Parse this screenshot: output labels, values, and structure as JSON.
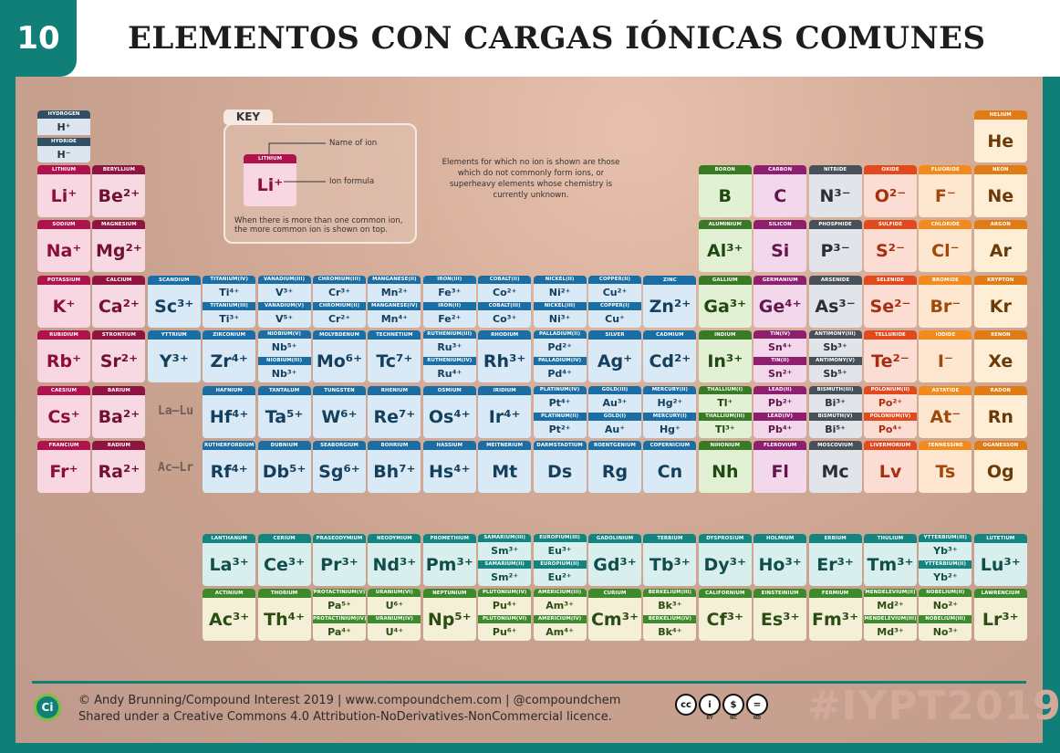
{
  "header": {
    "number": "10",
    "title": "ELEMENTOS CON CARGAS IÓNICAS COMUNES"
  },
  "key": {
    "tag": "KEY",
    "name_label": "Name of ion",
    "formula_label": "Ion formula",
    "sample_name": "LITHIUM",
    "sample_ion": "Li⁺",
    "note": "When there is more than one common ion, the more common ion is shown on top."
  },
  "note_main": "Elements for which no ion is shown are those which do not commonly form ions, or superheavy elements whose chemistry is currently unknown.",
  "gap_labels": {
    "la": "La–Lu",
    "ac": "Ac–Lr"
  },
  "colors": {
    "alkali": {
      "bar": "#b0124e",
      "bg": "#f8d7e3",
      "fg": "#8c0d3c"
    },
    "alkaline": {
      "bar": "#8f1540",
      "bg": "#f6d9e2",
      "fg": "#731032"
    },
    "transition": {
      "bar": "#1a6ea4",
      "bg": "#d9e9f6",
      "fg": "#14405e"
    },
    "post": {
      "bar": "#3a7a26",
      "bg": "#e2f0d3",
      "fg": "#204912"
    },
    "metalloid": {
      "bar": "#8d1f6e",
      "bg": "#f2d8ea",
      "fg": "#63154d"
    },
    "nonmetal": {
      "bar": "#48505a",
      "bg": "#e1e4e8",
      "fg": "#2b2f35"
    },
    "halogen_o": {
      "bar": "#e24a1e",
      "bg": "#fbddd3",
      "fg": "#a72e0f"
    },
    "halogen": {
      "bar": "#f28a1d",
      "bg": "#fde7d1",
      "fg": "#a0490a"
    },
    "noble": {
      "bar": "#e07b16",
      "bg": "#fdeed5",
      "fg": "#6b3a08"
    },
    "lanth": {
      "bar": "#13847f",
      "bg": "#d9efee",
      "fg": "#0f4e4b"
    },
    "actin": {
      "bar": "#3d8a2a",
      "bg": "#f3f0d7",
      "fg": "#2c4d12"
    },
    "hydro": {
      "bar": "#2f4f66",
      "bg": "#dde6ee",
      "fg": "#203646"
    }
  },
  "elements": [
    {
      "c": "hydro",
      "g": 1,
      "r": 1,
      "dual": [
        [
          "HYDROGEN",
          "H⁺"
        ],
        [
          "HYDRIDE",
          "H⁻"
        ]
      ]
    },
    {
      "c": "noble",
      "g": 18,
      "r": 1,
      "name": "HELIUM",
      "ion": "He"
    },
    {
      "c": "alkali",
      "g": 1,
      "r": 2,
      "name": "LITHIUM",
      "ion": "Li⁺"
    },
    {
      "c": "alkaline",
      "g": 2,
      "r": 2,
      "name": "BERYLLIUM",
      "ion": "Be²⁺"
    },
    {
      "c": "post",
      "g": 13,
      "r": 2,
      "name": "BORON",
      "ion": "B"
    },
    {
      "c": "metalloid",
      "g": 14,
      "r": 2,
      "name": "CARBON",
      "ion": "C"
    },
    {
      "c": "nonmetal",
      "g": 15,
      "r": 2,
      "name": "NITRIDE",
      "ion": "N³⁻"
    },
    {
      "c": "halogen_o",
      "g": 16,
      "r": 2,
      "name": "OXIDE",
      "ion": "O²⁻"
    },
    {
      "c": "halogen",
      "g": 17,
      "r": 2,
      "name": "FLUORIDE",
      "ion": "F⁻"
    },
    {
      "c": "noble",
      "g": 18,
      "r": 2,
      "name": "NEON",
      "ion": "Ne"
    },
    {
      "c": "alkali",
      "g": 1,
      "r": 3,
      "name": "SODIUM",
      "ion": "Na⁺"
    },
    {
      "c": "alkaline",
      "g": 2,
      "r": 3,
      "name": "MAGNESIUM",
      "ion": "Mg²⁺"
    },
    {
      "c": "post",
      "g": 13,
      "r": 3,
      "name": "ALUMINIUM",
      "ion": "Al³⁺"
    },
    {
      "c": "metalloid",
      "g": 14,
      "r": 3,
      "name": "SILICON",
      "ion": "Si"
    },
    {
      "c": "nonmetal",
      "g": 15,
      "r": 3,
      "name": "PHOSPHIDE",
      "ion": "P³⁻"
    },
    {
      "c": "halogen_o",
      "g": 16,
      "r": 3,
      "name": "SULFIDE",
      "ion": "S²⁻"
    },
    {
      "c": "halogen",
      "g": 17,
      "r": 3,
      "name": "CHLORIDE",
      "ion": "Cl⁻"
    },
    {
      "c": "noble",
      "g": 18,
      "r": 3,
      "name": "ARGON",
      "ion": "Ar"
    },
    {
      "c": "alkali",
      "g": 1,
      "r": 4,
      "name": "POTASSIUM",
      "ion": "K⁺"
    },
    {
      "c": "alkaline",
      "g": 2,
      "r": 4,
      "name": "CALCIUM",
      "ion": "Ca²⁺"
    },
    {
      "c": "transition",
      "g": 3,
      "r": 4,
      "name": "SCANDIUM",
      "ion": "Sc³⁺"
    },
    {
      "c": "transition",
      "g": 4,
      "r": 4,
      "dual": [
        [
          "TITANIUM(IV)",
          "Ti⁴⁺"
        ],
        [
          "TITANIUM(III)",
          "Ti³⁺"
        ]
      ]
    },
    {
      "c": "transition",
      "g": 5,
      "r": 4,
      "dual": [
        [
          "VANADIUM(III)",
          "V³⁺"
        ],
        [
          "VANADIUM(V)",
          "V⁵⁺"
        ]
      ]
    },
    {
      "c": "transition",
      "g": 6,
      "r": 4,
      "dual": [
        [
          "CHROMIUM(III)",
          "Cr³⁺"
        ],
        [
          "CHROMIUM(II)",
          "Cr²⁺"
        ]
      ]
    },
    {
      "c": "transition",
      "g": 7,
      "r": 4,
      "dual": [
        [
          "MANGANESE(II)",
          "Mn²⁺"
        ],
        [
          "MANGANESE(IV)",
          "Mn⁴⁺"
        ]
      ]
    },
    {
      "c": "transition",
      "g": 8,
      "r": 4,
      "dual": [
        [
          "IRON(III)",
          "Fe³⁺"
        ],
        [
          "IRON(II)",
          "Fe²⁺"
        ]
      ]
    },
    {
      "c": "transition",
      "g": 9,
      "r": 4,
      "dual": [
        [
          "COBALT(II)",
          "Co²⁺"
        ],
        [
          "COBALT(III)",
          "Co³⁺"
        ]
      ]
    },
    {
      "c": "transition",
      "g": 10,
      "r": 4,
      "dual": [
        [
          "NICKEL(II)",
          "Ni²⁺"
        ],
        [
          "NICKEL(III)",
          "Ni³⁺"
        ]
      ]
    },
    {
      "c": "transition",
      "g": 11,
      "r": 4,
      "dual": [
        [
          "COPPER(II)",
          "Cu²⁺"
        ],
        [
          "COPPER(I)",
          "Cu⁺"
        ]
      ]
    },
    {
      "c": "transition",
      "g": 12,
      "r": 4,
      "name": "ZINC",
      "ion": "Zn²⁺"
    },
    {
      "c": "post",
      "g": 13,
      "r": 4,
      "name": "GALLIUM",
      "ion": "Ga³⁺"
    },
    {
      "c": "metalloid",
      "g": 14,
      "r": 4,
      "name": "GERMANIUM",
      "ion": "Ge⁴⁺"
    },
    {
      "c": "nonmetal",
      "g": 15,
      "r": 4,
      "name": "ARSENIDE",
      "ion": "As³⁻"
    },
    {
      "c": "halogen_o",
      "g": 16,
      "r": 4,
      "name": "SELENIDE",
      "ion": "Se²⁻"
    },
    {
      "c": "halogen",
      "g": 17,
      "r": 4,
      "name": "BROMIDE",
      "ion": "Br⁻"
    },
    {
      "c": "noble",
      "g": 18,
      "r": 4,
      "name": "KRYPTON",
      "ion": "Kr"
    },
    {
      "c": "alkali",
      "g": 1,
      "r": 5,
      "name": "RUBIDIUM",
      "ion": "Rb⁺"
    },
    {
      "c": "alkaline",
      "g": 2,
      "r": 5,
      "name": "STRONTIUM",
      "ion": "Sr²⁺"
    },
    {
      "c": "transition",
      "g": 3,
      "r": 5,
      "name": "YTTRIUM",
      "ion": "Y³⁺"
    },
    {
      "c": "transition",
      "g": 4,
      "r": 5,
      "name": "ZIRCONIUM",
      "ion": "Zr⁴⁺"
    },
    {
      "c": "transition",
      "g": 5,
      "r": 5,
      "dual": [
        [
          "NIOBIUM(V)",
          "Nb⁵⁺"
        ],
        [
          "NIOBIUM(III)",
          "Nb³⁺"
        ]
      ]
    },
    {
      "c": "transition",
      "g": 6,
      "r": 5,
      "name": "MOLYBDENUM",
      "ion": "Mo⁶⁺"
    },
    {
      "c": "transition",
      "g": 7,
      "r": 5,
      "name": "TECHNETIUM",
      "ion": "Tc⁷⁺"
    },
    {
      "c": "transition",
      "g": 8,
      "r": 5,
      "dual": [
        [
          "RUTHENIUM(III)",
          "Ru³⁺"
        ],
        [
          "RUTHENIUM(IV)",
          "Ru⁴⁺"
        ]
      ]
    },
    {
      "c": "transition",
      "g": 9,
      "r": 5,
      "name": "RHODIUM",
      "ion": "Rh³⁺"
    },
    {
      "c": "transition",
      "g": 10,
      "r": 5,
      "dual": [
        [
          "PALLADIUM(II)",
          "Pd²⁺"
        ],
        [
          "PALLADIUM(IV)",
          "Pd⁴⁺"
        ]
      ]
    },
    {
      "c": "transition",
      "g": 11,
      "r": 5,
      "name": "SILVER",
      "ion": "Ag⁺"
    },
    {
      "c": "transition",
      "g": 12,
      "r": 5,
      "name": "CADMIUM",
      "ion": "Cd²⁺"
    },
    {
      "c": "post",
      "g": 13,
      "r": 5,
      "name": "INDIUM",
      "ion": "In³⁺"
    },
    {
      "c": "metalloid",
      "g": 14,
      "r": 5,
      "dual": [
        [
          "TIN(IV)",
          "Sn⁴⁺"
        ],
        [
          "TIN(II)",
          "Sn²⁺"
        ]
      ]
    },
    {
      "c": "nonmetal",
      "g": 15,
      "r": 5,
      "dual": [
        [
          "ANTIMONY(III)",
          "Sb³⁺"
        ],
        [
          "ANTIMONY(V)",
          "Sb⁵⁺"
        ]
      ]
    },
    {
      "c": "halogen_o",
      "g": 16,
      "r": 5,
      "name": "TELLURIDE",
      "ion": "Te²⁻"
    },
    {
      "c": "halogen",
      "g": 17,
      "r": 5,
      "name": "IODIDE",
      "ion": "I⁻"
    },
    {
      "c": "noble",
      "g": 18,
      "r": 5,
      "name": "XENON",
      "ion": "Xe"
    },
    {
      "c": "alkali",
      "g": 1,
      "r": 6,
      "name": "CAESIUM",
      "ion": "Cs⁺"
    },
    {
      "c": "alkaline",
      "g": 2,
      "r": 6,
      "name": "BARIUM",
      "ion": "Ba²⁺"
    },
    {
      "c": "transition",
      "g": 4,
      "r": 6,
      "name": "HAFNIUM",
      "ion": "Hf⁴⁺"
    },
    {
      "c": "transition",
      "g": 5,
      "r": 6,
      "name": "TANTALUM",
      "ion": "Ta⁵⁺"
    },
    {
      "c": "transition",
      "g": 6,
      "r": 6,
      "name": "TUNGSTEN",
      "ion": "W⁶⁺"
    },
    {
      "c": "transition",
      "g": 7,
      "r": 6,
      "name": "RHENIUM",
      "ion": "Re⁷⁺"
    },
    {
      "c": "transition",
      "g": 8,
      "r": 6,
      "name": "OSMIUM",
      "ion": "Os⁴⁺"
    },
    {
      "c": "transition",
      "g": 9,
      "r": 6,
      "name": "IRIDIUM",
      "ion": "Ir⁴⁺"
    },
    {
      "c": "transition",
      "g": 10,
      "r": 6,
      "dual": [
        [
          "PLATINUM(IV)",
          "Pt⁴⁺"
        ],
        [
          "PLATINUM(II)",
          "Pt²⁺"
        ]
      ]
    },
    {
      "c": "transition",
      "g": 11,
      "r": 6,
      "dual": [
        [
          "GOLD(III)",
          "Au³⁺"
        ],
        [
          "GOLD(I)",
          "Au⁺"
        ]
      ]
    },
    {
      "c": "transition",
      "g": 12,
      "r": 6,
      "dual": [
        [
          "MERCURY(II)",
          "Hg²⁺"
        ],
        [
          "MERCURY(I)",
          "Hg⁺"
        ]
      ]
    },
    {
      "c": "post",
      "g": 13,
      "r": 6,
      "dual": [
        [
          "THALLIUM(I)",
          "Tl⁺"
        ],
        [
          "THALLIUM(III)",
          "Tl³⁺"
        ]
      ]
    },
    {
      "c": "metalloid",
      "g": 14,
      "r": 6,
      "dual": [
        [
          "LEAD(II)",
          "Pb²⁺"
        ],
        [
          "LEAD(IV)",
          "Pb⁴⁺"
        ]
      ]
    },
    {
      "c": "nonmetal",
      "g": 15,
      "r": 6,
      "dual": [
        [
          "BISMUTH(III)",
          "Bi³⁺"
        ],
        [
          "BISMUTH(V)",
          "Bi⁵⁺"
        ]
      ]
    },
    {
      "c": "halogen_o",
      "g": 16,
      "r": 6,
      "dual": [
        [
          "POLONIUM(II)",
          "Po²⁺"
        ],
        [
          "POLONIUM(IV)",
          "Po⁴⁺"
        ]
      ]
    },
    {
      "c": "halogen",
      "g": 17,
      "r": 6,
      "name": "ASTATIDE",
      "ion": "At⁻"
    },
    {
      "c": "noble",
      "g": 18,
      "r": 6,
      "name": "RADON",
      "ion": "Rn"
    },
    {
      "c": "alkali",
      "g": 1,
      "r": 7,
      "name": "FRANCIUM",
      "ion": "Fr⁺"
    },
    {
      "c": "alkaline",
      "g": 2,
      "r": 7,
      "name": "RADIUM",
      "ion": "Ra²⁺"
    },
    {
      "c": "transition",
      "g": 4,
      "r": 7,
      "name": "RUTHERFORDIUM",
      "ion": "Rf⁴⁺"
    },
    {
      "c": "transition",
      "g": 5,
      "r": 7,
      "name": "DUBNIUM",
      "ion": "Db⁵⁺"
    },
    {
      "c": "transition",
      "g": 6,
      "r": 7,
      "name": "SEABORGIUM",
      "ion": "Sg⁶⁺"
    },
    {
      "c": "transition",
      "g": 7,
      "r": 7,
      "name": "BOHRIUM",
      "ion": "Bh⁷⁺"
    },
    {
      "c": "transition",
      "g": 8,
      "r": 7,
      "name": "HASSIUM",
      "ion": "Hs⁴⁺"
    },
    {
      "c": "transition",
      "g": 9,
      "r": 7,
      "name": "MEITNERIUM",
      "ion": "Mt"
    },
    {
      "c": "transition",
      "g": 10,
      "r": 7,
      "name": "DARMSTADTIUM",
      "ion": "Ds"
    },
    {
      "c": "transition",
      "g": 11,
      "r": 7,
      "name": "ROENTGENIUM",
      "ion": "Rg"
    },
    {
      "c": "transition",
      "g": 12,
      "r": 7,
      "name": "COPERNICIUM",
      "ion": "Cn"
    },
    {
      "c": "post",
      "g": 13,
      "r": 7,
      "name": "NIHONIUM",
      "ion": "Nh"
    },
    {
      "c": "metalloid",
      "g": 14,
      "r": 7,
      "name": "FLEROVIUM",
      "ion": "Fl"
    },
    {
      "c": "nonmetal",
      "g": 15,
      "r": 7,
      "name": "MOSCOVIUM",
      "ion": "Mc"
    },
    {
      "c": "halogen_o",
      "g": 16,
      "r": 7,
      "name": "LIVERMORIUM",
      "ion": "Lv"
    },
    {
      "c": "halogen",
      "g": 17,
      "r": 7,
      "name": "TENNESSINE",
      "ion": "Ts"
    },
    {
      "c": "noble",
      "g": 18,
      "r": 7,
      "name": "OGANESSON",
      "ion": "Og"
    },
    {
      "c": "lanth",
      "g": 4,
      "r": 9,
      "name": "LANTHANUM",
      "ion": "La³⁺"
    },
    {
      "c": "lanth",
      "g": 5,
      "r": 9,
      "name": "CERIUM",
      "ion": "Ce³⁺"
    },
    {
      "c": "lanth",
      "g": 6,
      "r": 9,
      "name": "PRASEODYMIUM",
      "ion": "Pr³⁺"
    },
    {
      "c": "lanth",
      "g": 7,
      "r": 9,
      "name": "NEODYMIUM",
      "ion": "Nd³⁺"
    },
    {
      "c": "lanth",
      "g": 8,
      "r": 9,
      "name": "PROMETHIUM",
      "ion": "Pm³⁺"
    },
    {
      "c": "lanth",
      "g": 9,
      "r": 9,
      "dual": [
        [
          "SAMARIUM(III)",
          "Sm³⁺"
        ],
        [
          "SAMARIUM(II)",
          "Sm²⁺"
        ]
      ]
    },
    {
      "c": "lanth",
      "g": 10,
      "r": 9,
      "dual": [
        [
          "EUROPIUM(III)",
          "Eu³⁺"
        ],
        [
          "EUROPIUM(II)",
          "Eu²⁺"
        ]
      ]
    },
    {
      "c": "lanth",
      "g": 11,
      "r": 9,
      "name": "GADOLINIUM",
      "ion": "Gd³⁺"
    },
    {
      "c": "lanth",
      "g": 12,
      "r": 9,
      "name": "TERBIUM",
      "ion": "Tb³⁺"
    },
    {
      "c": "lanth",
      "g": 13,
      "r": 9,
      "name": "DYSPROSIUM",
      "ion": "Dy³⁺"
    },
    {
      "c": "lanth",
      "g": 14,
      "r": 9,
      "name": "HOLMIUM",
      "ion": "Ho³⁺"
    },
    {
      "c": "lanth",
      "g": 15,
      "r": 9,
      "name": "ERBIUM",
      "ion": "Er³⁺"
    },
    {
      "c": "lanth",
      "g": 16,
      "r": 9,
      "name": "THULIUM",
      "ion": "Tm³⁺"
    },
    {
      "c": "lanth",
      "g": 17,
      "r": 9,
      "dual": [
        [
          "YTTERBIUM(III)",
          "Yb³⁺"
        ],
        [
          "YTTERBIUM(II)",
          "Yb²⁺"
        ]
      ]
    },
    {
      "c": "lanth",
      "g": 18,
      "r": 9,
      "name": "LUTETIUM",
      "ion": "Lu³⁺"
    },
    {
      "c": "actin",
      "g": 4,
      "r": 10,
      "name": "ACTINIUM",
      "ion": "Ac³⁺"
    },
    {
      "c": "actin",
      "g": 5,
      "r": 10,
      "name": "THORIUM",
      "ion": "Th⁴⁺"
    },
    {
      "c": "actin",
      "g": 6,
      "r": 10,
      "dual": [
        [
          "PROTACTINIUM(V)",
          "Pa⁵⁺"
        ],
        [
          "PROTACTINIUM(IV)",
          "Pa⁴⁺"
        ]
      ]
    },
    {
      "c": "actin",
      "g": 7,
      "r": 10,
      "dual": [
        [
          "URANIUM(VI)",
          "U⁶⁺"
        ],
        [
          "URANIUM(IV)",
          "U⁴⁺"
        ]
      ]
    },
    {
      "c": "actin",
      "g": 8,
      "r": 10,
      "name": "NEPTUNIUM",
      "ion": "Np⁵⁺"
    },
    {
      "c": "actin",
      "g": 9,
      "r": 10,
      "dual": [
        [
          "PLUTONIUM(IV)",
          "Pu⁴⁺"
        ],
        [
          "PLUTONIUM(VI)",
          "Pu⁶⁺"
        ]
      ]
    },
    {
      "c": "actin",
      "g": 10,
      "r": 10,
      "dual": [
        [
          "AMERICIUM(III)",
          "Am³⁺"
        ],
        [
          "AMERICIUM(IV)",
          "Am⁴⁺"
        ]
      ]
    },
    {
      "c": "actin",
      "g": 11,
      "r": 10,
      "name": "CURIUM",
      "ion": "Cm³⁺"
    },
    {
      "c": "actin",
      "g": 12,
      "r": 10,
      "dual": [
        [
          "BERKELIUM(III)",
          "Bk³⁺"
        ],
        [
          "BERKELIUM(IV)",
          "Bk⁴⁺"
        ]
      ]
    },
    {
      "c": "actin",
      "g": 13,
      "r": 10,
      "name": "CALIFORNIUM",
      "ion": "Cf³⁺"
    },
    {
      "c": "actin",
      "g": 14,
      "r": 10,
      "name": "EINSTEINIUM",
      "ion": "Es³⁺"
    },
    {
      "c": "actin",
      "g": 15,
      "r": 10,
      "name": "FERMIUM",
      "ion": "Fm³⁺"
    },
    {
      "c": "actin",
      "g": 16,
      "r": 10,
      "dual": [
        [
          "MENDELEVIUM(II)",
          "Md²⁺"
        ],
        [
          "MENDELEVIUM(III)",
          "Md³⁺"
        ]
      ]
    },
    {
      "c": "actin",
      "g": 17,
      "r": 10,
      "dual": [
        [
          "NOBELIUM(II)",
          "No²⁺"
        ],
        [
          "NOBELIUM(III)",
          "No³⁺"
        ]
      ]
    },
    {
      "c": "actin",
      "g": 18,
      "r": 10,
      "name": "LAWRENCIUM",
      "ion": "Lr³⁺"
    }
  ],
  "footer": {
    "logo": "Ci",
    "line1": "© Andy Brunning/Compound Interest 2019 | www.compoundchem.com | @compoundchem",
    "line2": "Shared under a Creative Commons 4.0 Attribution-NoDerivatives-NonCommercial licence.",
    "cc": [
      "cc",
      "i",
      "$",
      "="
    ],
    "cc_sub": [
      "",
      "BY",
      "NC",
      "ND"
    ],
    "hashtag": "#IYPT2019"
  }
}
